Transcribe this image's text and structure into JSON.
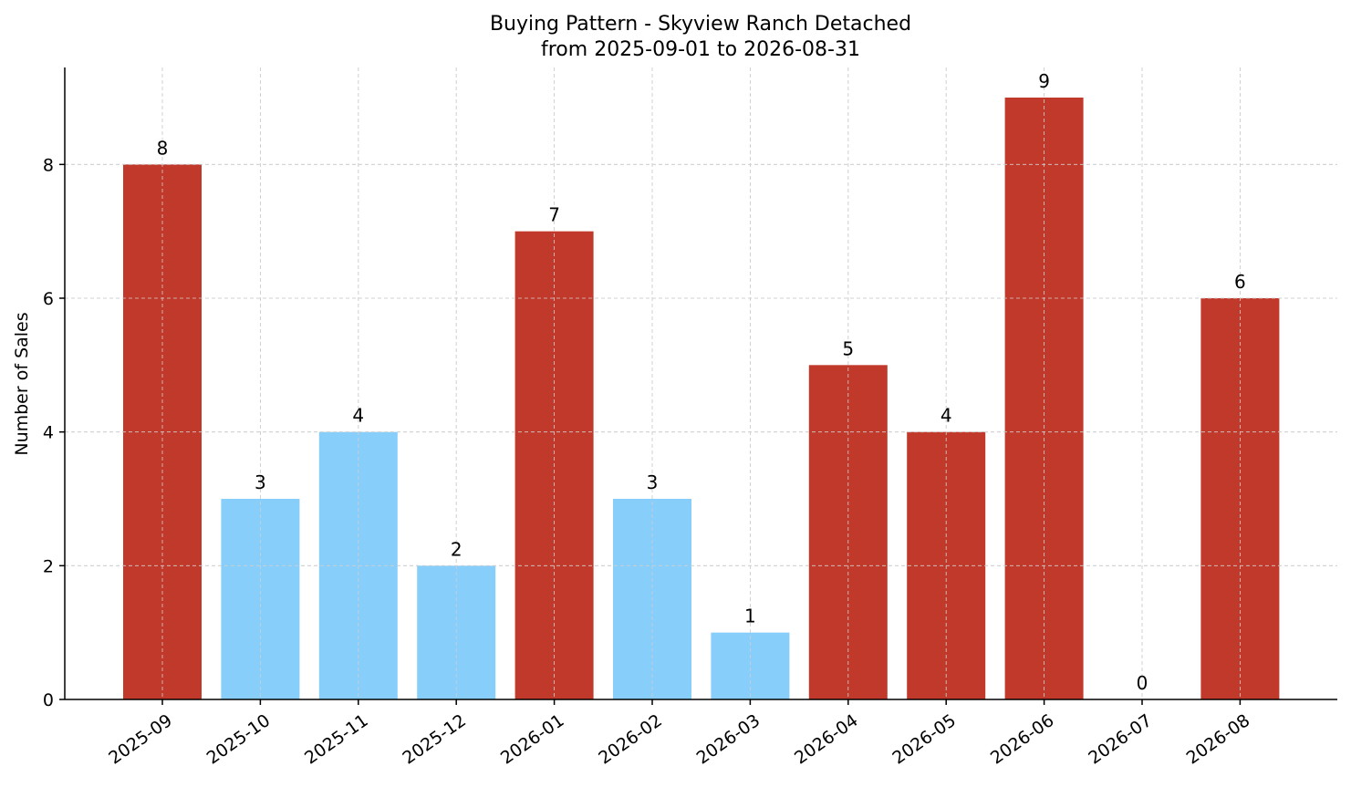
{
  "chart_data": {
    "type": "bar",
    "title_line1": "Buying Pattern - Skyview Ranch Detached",
    "title_line2": "from 2025-09-01 to 2026-08-31",
    "xlabel": "",
    "ylabel": "Number of Sales",
    "categories": [
      "2025-09",
      "2025-10",
      "2025-11",
      "2025-12",
      "2026-01",
      "2026-02",
      "2026-03",
      "2026-04",
      "2026-05",
      "2026-06",
      "2026-07",
      "2026-08"
    ],
    "values": [
      8,
      3,
      4,
      2,
      7,
      3,
      1,
      5,
      4,
      9,
      0,
      6
    ],
    "ylim": [
      0,
      9.45
    ],
    "yticks": [
      0,
      2,
      4,
      6,
      8
    ],
    "grid": true,
    "colors": {
      "high": "#c0392b",
      "low": "#87cefa"
    },
    "bar_colors": [
      "high",
      "low",
      "low",
      "low",
      "high",
      "low",
      "low",
      "high",
      "high",
      "high",
      "low",
      "high"
    ]
  }
}
